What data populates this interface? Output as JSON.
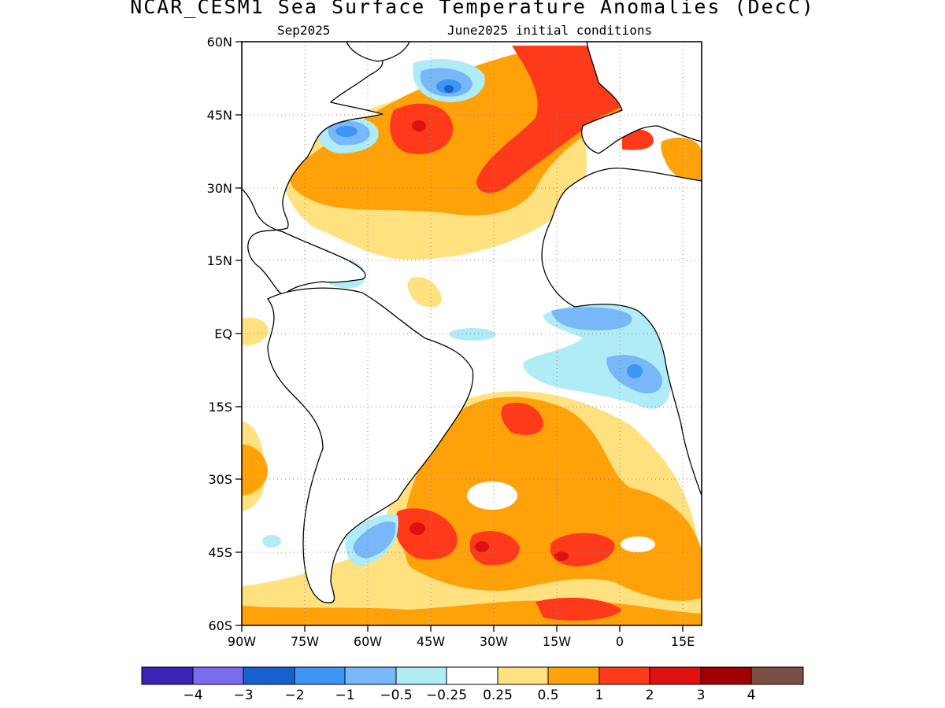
{
  "title": "NCAR_CESM1 Sea Surface Temperature Anomalies (DecC)",
  "subtitle_left": "Sep2025",
  "subtitle_right": "June2025 initial conditions",
  "map": {
    "lon_range": [
      -90,
      20
    ],
    "lat_range": [
      -60,
      60
    ],
    "lon_ticks": [
      "90W",
      "75W",
      "60W",
      "45W",
      "30W",
      "15W",
      "0",
      "15E"
    ],
    "lat_ticks": [
      "60N",
      "45N",
      "30N",
      "15N",
      "EQ",
      "15S",
      "30S",
      "45S",
      "60S"
    ],
    "gridlines": "dotted",
    "land_color": "#ffffff",
    "coastline_color": "#000000"
  },
  "colorbar": {
    "colors": [
      "#3a23b6",
      "#7a6cf0",
      "#1660d0",
      "#3d95f5",
      "#78b8f8",
      "#b0ecf6",
      "#ffffff",
      "#ffe180",
      "#ffa20a",
      "#ff3a1a",
      "#e01010",
      "#a00000",
      "#7a4e42"
    ],
    "labels": [
      "−4",
      "−3",
      "−2",
      "−1",
      "−0.5",
      "−0.25",
      "0.25",
      "0.5",
      "1",
      "2",
      "3",
      "4"
    ]
  }
}
